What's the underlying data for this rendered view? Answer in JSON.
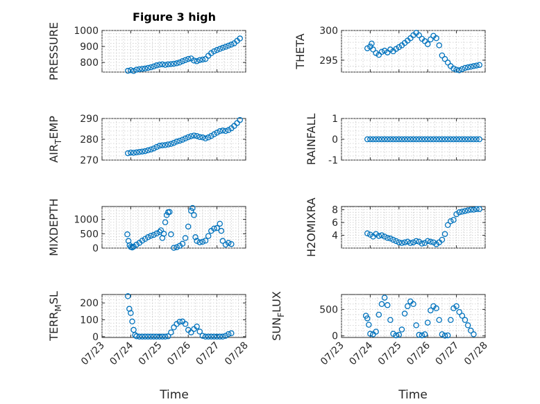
{
  "figure": {
    "title": "Figure 3 high",
    "series_color": "#0072BD",
    "xlabel": "Time",
    "xtick_labels": [
      "07/23",
      "07/24",
      "07/25",
      "07/26",
      "07/27",
      "07/28"
    ]
  },
  "chart_data": [
    {
      "type": "scatter",
      "ylabel": "PRESSURE",
      "xlim": [
        0,
        5
      ],
      "ylim": [
        740,
        1000
      ],
      "yticks": [
        800,
        900,
        1000
      ],
      "grid": true,
      "x": [
        0.9,
        1.0,
        1.1,
        1.2,
        1.3,
        1.4,
        1.5,
        1.6,
        1.7,
        1.8,
        1.9,
        2.0,
        2.1,
        2.2,
        2.3,
        2.4,
        2.5,
        2.6,
        2.7,
        2.8,
        2.9,
        3.0,
        3.1,
        3.2,
        3.3,
        3.4,
        3.5,
        3.6,
        3.7,
        3.8,
        3.9,
        4.0,
        4.1,
        4.2,
        4.3,
        4.4,
        4.5,
        4.6,
        4.7,
        4.8
      ],
      "y": [
        748,
        752,
        747,
        755,
        758,
        760,
        762,
        766,
        770,
        775,
        782,
        786,
        788,
        785,
        788,
        790,
        792,
        795,
        800,
        808,
        815,
        822,
        825,
        812,
        808,
        815,
        818,
        822,
        842,
        858,
        870,
        878,
        885,
        892,
        898,
        905,
        912,
        920,
        935,
        950
      ]
    },
    {
      "type": "scatter",
      "ylabel": "THETA",
      "xlim": [
        0,
        5
      ],
      "ylim": [
        293,
        300
      ],
      "yticks": [
        295,
        300
      ],
      "grid": true,
      "x": [
        0.9,
        1.0,
        1.05,
        1.1,
        1.2,
        1.3,
        1.4,
        1.5,
        1.6,
        1.7,
        1.8,
        1.9,
        2.0,
        2.1,
        2.2,
        2.3,
        2.4,
        2.5,
        2.6,
        2.7,
        2.8,
        2.9,
        3.0,
        3.1,
        3.2,
        3.3,
        3.4,
        3.5,
        3.6,
        3.7,
        3.8,
        3.9,
        4.0,
        4.1,
        4.2,
        4.3,
        4.4,
        4.5,
        4.6,
        4.7,
        4.8
      ],
      "y": [
        297.0,
        297.3,
        297.8,
        296.8,
        296.2,
        295.9,
        296.4,
        296.6,
        296.3,
        296.8,
        296.5,
        296.9,
        297.2,
        297.5,
        297.9,
        298.3,
        298.7,
        299.2,
        299.6,
        299.2,
        298.6,
        298.2,
        297.7,
        298.5,
        299.1,
        298.7,
        297.5,
        295.8,
        295.2,
        294.6,
        294.0,
        293.6,
        293.4,
        293.3,
        293.5,
        293.7,
        293.8,
        293.9,
        294.0,
        294.1,
        294.2
      ]
    },
    {
      "type": "scatter",
      "ylabel": "AIR_TEMP",
      "xlim": [
        0,
        5
      ],
      "ylim": [
        270,
        290
      ],
      "yticks": [
        270,
        280,
        290
      ],
      "grid": true,
      "x": [
        0.9,
        1.0,
        1.1,
        1.2,
        1.3,
        1.4,
        1.5,
        1.6,
        1.7,
        1.8,
        1.9,
        2.0,
        2.1,
        2.2,
        2.3,
        2.4,
        2.5,
        2.6,
        2.7,
        2.8,
        2.9,
        3.0,
        3.1,
        3.2,
        3.3,
        3.4,
        3.5,
        3.6,
        3.7,
        3.8,
        3.9,
        4.0,
        4.1,
        4.2,
        4.3,
        4.4,
        4.5,
        4.6,
        4.7,
        4.8
      ],
      "y": [
        273.3,
        273.6,
        273.5,
        273.7,
        273.9,
        274.1,
        274.3,
        274.7,
        275.1,
        275.6,
        276.3,
        276.9,
        277.1,
        277.2,
        277.5,
        277.8,
        278.3,
        278.9,
        279.3,
        279.8,
        280.4,
        281.0,
        281.5,
        281.8,
        281.6,
        281.1,
        280.9,
        280.4,
        280.9,
        281.6,
        282.4,
        283.2,
        283.9,
        284.2,
        284.0,
        284.4,
        285.3,
        286.4,
        287.8,
        289.3
      ]
    },
    {
      "type": "scatter",
      "ylabel": "RAINFALL",
      "xlim": [
        0,
        5
      ],
      "ylim": [
        -1,
        1
      ],
      "yticks": [
        -1,
        0,
        1
      ],
      "grid": true,
      "x": [
        0.9,
        1.0,
        1.1,
        1.2,
        1.3,
        1.4,
        1.5,
        1.6,
        1.7,
        1.8,
        1.9,
        2.0,
        2.1,
        2.2,
        2.3,
        2.4,
        2.5,
        2.6,
        2.7,
        2.8,
        2.9,
        3.0,
        3.1,
        3.2,
        3.3,
        3.4,
        3.5,
        3.6,
        3.7,
        3.8,
        3.9,
        4.0,
        4.1,
        4.2,
        4.3,
        4.4,
        4.5,
        4.6,
        4.7,
        4.8
      ],
      "y": [
        0,
        0,
        0,
        0,
        0,
        0,
        0,
        0,
        0,
        0,
        0,
        0,
        0,
        0,
        0,
        0,
        0,
        0,
        0,
        0,
        0,
        0,
        0,
        0,
        0,
        0,
        0,
        0,
        0,
        0,
        0,
        0,
        0,
        0,
        0,
        0,
        0,
        0,
        0,
        0
      ]
    },
    {
      "type": "scatter",
      "ylabel": "MIXDEPTH",
      "xlim": [
        0,
        5
      ],
      "ylim": [
        0,
        1450
      ],
      "yticks": [
        0,
        500,
        1000
      ],
      "grid": true,
      "x": [
        0.88,
        0.92,
        0.96,
        1.0,
        1.05,
        1.1,
        1.2,
        1.3,
        1.4,
        1.5,
        1.6,
        1.7,
        1.8,
        1.9,
        2.0,
        2.05,
        2.1,
        2.15,
        2.2,
        2.25,
        2.3,
        2.35,
        2.4,
        2.5,
        2.6,
        2.7,
        2.8,
        2.9,
        3.0,
        3.1,
        3.15,
        3.2,
        3.25,
        3.3,
        3.4,
        3.5,
        3.6,
        3.7,
        3.8,
        3.9,
        4.0,
        4.1,
        4.15,
        4.2,
        4.3,
        4.4,
        4.5
      ],
      "y": [
        480,
        250,
        100,
        40,
        20,
        50,
        120,
        180,
        260,
        320,
        380,
        430,
        460,
        510,
        560,
        620,
        350,
        500,
        900,
        1150,
        1250,
        1260,
        480,
        10,
        30,
        80,
        150,
        350,
        750,
        1300,
        1400,
        1150,
        380,
        250,
        200,
        220,
        260,
        420,
        600,
        680,
        700,
        850,
        600,
        250,
        120,
        180,
        140
      ]
    },
    {
      "type": "scatter",
      "ylabel": "H2OMIXRA",
      "xlim": [
        0,
        5
      ],
      "ylim": [
        2,
        8.5
      ],
      "yticks": [
        4,
        6,
        8
      ],
      "grid": true,
      "x": [
        0.9,
        1.0,
        1.1,
        1.2,
        1.3,
        1.4,
        1.5,
        1.6,
        1.7,
        1.8,
        1.9,
        2.0,
        2.1,
        2.2,
        2.3,
        2.4,
        2.5,
        2.6,
        2.7,
        2.8,
        2.9,
        3.0,
        3.1,
        3.2,
        3.3,
        3.4,
        3.5,
        3.6,
        3.7,
        3.8,
        3.9,
        4.0,
        4.1,
        4.2,
        4.3,
        4.4,
        4.5,
        4.6,
        4.7,
        4.8
      ],
      "y": [
        4.3,
        4.1,
        3.8,
        4.2,
        3.9,
        4.0,
        3.8,
        3.6,
        3.5,
        3.3,
        3.1,
        2.9,
        2.8,
        2.9,
        3.0,
        2.8,
        2.9,
        3.1,
        3.0,
        2.7,
        2.8,
        3.1,
        3.0,
        2.9,
        2.6,
        2.9,
        3.3,
        4.2,
        5.6,
        6.2,
        6.4,
        7.3,
        7.6,
        7.7,
        7.8,
        7.9,
        8.0,
        8.0,
        8.1,
        8.1
      ]
    },
    {
      "type": "scatter",
      "ylabel": "TERR_MSL",
      "xlim": [
        0,
        5
      ],
      "ylim": [
        -5,
        250
      ],
      "yticks": [
        0,
        100,
        200
      ],
      "grid": true,
      "x": [
        0.9,
        0.95,
        1.0,
        1.05,
        1.1,
        1.15,
        1.2,
        1.3,
        1.4,
        1.5,
        1.6,
        1.7,
        1.8,
        1.9,
        2.0,
        2.1,
        2.2,
        2.3,
        2.4,
        2.5,
        2.6,
        2.7,
        2.8,
        2.9,
        3.0,
        3.1,
        3.2,
        3.3,
        3.4,
        3.5,
        3.6,
        3.7,
        3.8,
        3.9,
        4.0,
        4.1,
        4.2,
        4.3,
        4.4,
        4.5
      ],
      "y": [
        240,
        165,
        140,
        90,
        40,
        10,
        2,
        0,
        0,
        0,
        0,
        0,
        0,
        0,
        0,
        0,
        0,
        2,
        25,
        55,
        75,
        88,
        90,
        75,
        40,
        25,
        45,
        60,
        30,
        5,
        0,
        0,
        0,
        0,
        0,
        0,
        0,
        5,
        15,
        20
      ]
    },
    {
      "type": "scatter",
      "ylabel": "SUN_FLUX",
      "xlim": [
        0,
        5
      ],
      "ylim": [
        -30,
        780
      ],
      "yticks": [
        0,
        500
      ],
      "grid": true,
      "x": [
        0.85,
        0.9,
        0.95,
        1.0,
        1.1,
        1.2,
        1.3,
        1.4,
        1.5,
        1.6,
        1.7,
        1.8,
        1.9,
        2.0,
        2.1,
        2.2,
        2.3,
        2.4,
        2.5,
        2.6,
        2.7,
        2.8,
        2.9,
        3.0,
        3.1,
        3.2,
        3.3,
        3.4,
        3.5,
        3.6,
        3.7,
        3.8,
        3.9,
        4.0,
        4.1,
        4.2,
        4.3,
        4.4,
        4.5,
        4.6
      ],
      "y": [
        380,
        330,
        210,
        40,
        30,
        80,
        400,
        600,
        720,
        580,
        300,
        40,
        10,
        20,
        120,
        420,
        560,
        650,
        600,
        200,
        20,
        10,
        30,
        250,
        480,
        560,
        520,
        300,
        30,
        5,
        10,
        300,
        520,
        560,
        450,
        380,
        300,
        200,
        100,
        30
      ]
    }
  ]
}
